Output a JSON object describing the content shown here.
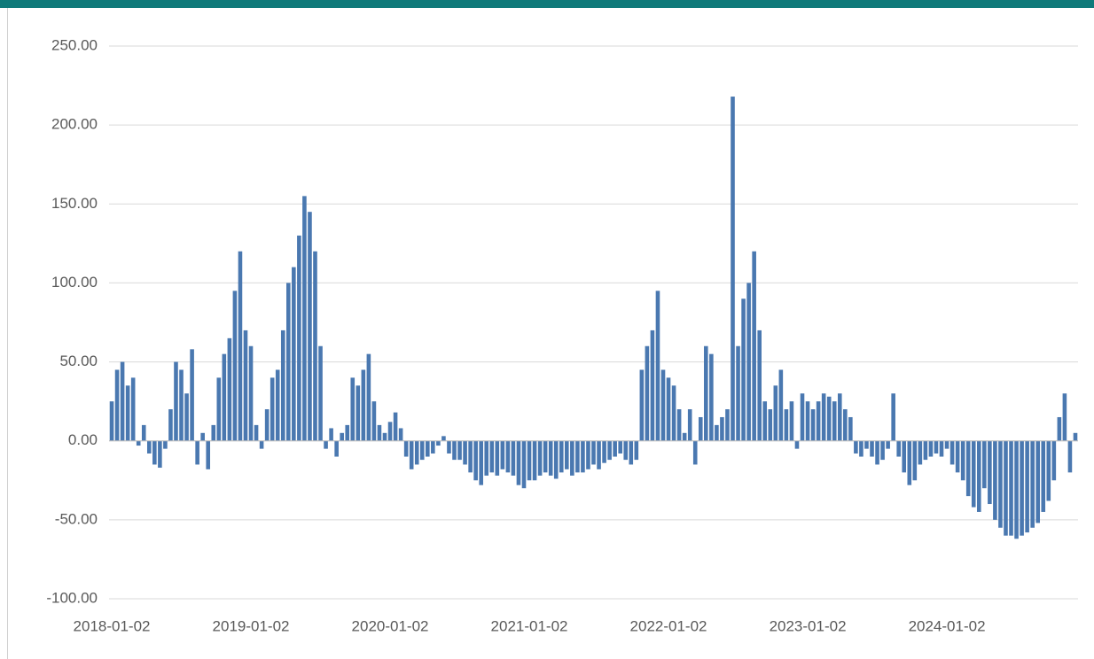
{
  "chart_data": {
    "type": "bar",
    "categories": [
      "2018-01-02",
      null,
      null,
      null,
      null,
      null,
      null,
      null,
      null,
      null,
      null,
      null,
      null,
      null,
      null,
      null,
      null,
      null,
      null,
      null,
      null,
      null,
      null,
      null,
      null,
      null,
      "2019-01-02",
      null,
      null,
      null,
      null,
      null,
      null,
      null,
      null,
      null,
      null,
      null,
      null,
      null,
      null,
      null,
      null,
      null,
      null,
      null,
      null,
      null,
      null,
      null,
      null,
      null,
      "2020-01-02",
      null,
      null,
      null,
      null,
      null,
      null,
      null,
      null,
      null,
      null,
      null,
      null,
      null,
      null,
      null,
      null,
      null,
      null,
      null,
      null,
      null,
      null,
      null,
      null,
      null,
      "2021-01-02",
      null,
      null,
      null,
      null,
      null,
      null,
      null,
      null,
      null,
      null,
      null,
      null,
      null,
      null,
      null,
      null,
      null,
      null,
      null,
      null,
      null,
      null,
      null,
      null,
      null,
      "2022-01-02",
      null,
      null,
      null,
      null,
      null,
      null,
      null,
      null,
      null,
      null,
      null,
      null,
      null,
      null,
      null,
      null,
      null,
      null,
      null,
      null,
      null,
      null,
      null,
      null,
      null,
      "2023-01-02",
      null,
      null,
      null,
      null,
      null,
      null,
      null,
      null,
      null,
      null,
      null,
      null,
      null,
      null,
      null,
      null,
      null,
      null,
      null,
      null,
      null,
      null,
      null,
      null,
      null,
      "2024-01-02",
      null,
      null,
      null,
      null,
      null,
      null,
      null,
      null,
      null,
      null,
      null,
      null,
      null,
      null,
      null,
      null,
      null,
      null,
      null,
      null,
      null,
      null,
      null,
      null
    ],
    "values": [
      25,
      45,
      50,
      35,
      40,
      -3,
      10,
      -8,
      -15,
      -17,
      -5,
      20,
      50,
      45,
      30,
      58,
      -15,
      5,
      -18,
      10,
      40,
      55,
      65,
      95,
      120,
      70,
      60,
      10,
      -5,
      20,
      40,
      45,
      70,
      100,
      110,
      130,
      155,
      145,
      120,
      60,
      -5,
      8,
      -10,
      5,
      10,
      40,
      35,
      45,
      55,
      25,
      10,
      5,
      12,
      18,
      8,
      -10,
      -18,
      -15,
      -12,
      -10,
      -8,
      -3,
      3,
      -8,
      -12,
      -12,
      -15,
      -20,
      -25,
      -28,
      -22,
      -20,
      -22,
      -18,
      -20,
      -22,
      -28,
      -30,
      -25,
      -25,
      -22,
      -20,
      -22,
      -24,
      -20,
      -18,
      -22,
      -20,
      -20,
      -18,
      -15,
      -18,
      -14,
      -12,
      -10,
      -8,
      -12,
      -15,
      -12,
      45,
      60,
      70,
      95,
      45,
      40,
      35,
      20,
      5,
      20,
      -15,
      15,
      60,
      55,
      10,
      15,
      20,
      218,
      60,
      90,
      100,
      120,
      70,
      25,
      20,
      35,
      45,
      20,
      25,
      -5,
      30,
      25,
      20,
      25,
      30,
      28,
      25,
      30,
      20,
      15,
      -8,
      -10,
      -5,
      -10,
      -15,
      -12,
      -5,
      30,
      -10,
      -20,
      -28,
      -25,
      -15,
      -12,
      -10,
      -8,
      -10,
      -5,
      -15,
      -20,
      -25,
      -35,
      -42,
      -45,
      -30,
      -40,
      -50,
      -55,
      -60,
      -60,
      -62,
      -60,
      -58,
      -55,
      -52,
      -45,
      -38,
      -25,
      15,
      30,
      -20,
      5
    ],
    "color": "#4a78b0",
    "ylim": [
      -100,
      250
    ],
    "yticks": [
      {
        "value": -100,
        "label": "-100.00"
      },
      {
        "value": -50,
        "label": "-50.00"
      },
      {
        "value": 0,
        "label": "0.00"
      },
      {
        "value": 50,
        "label": "50.00"
      },
      {
        "value": 100,
        "label": "100.00"
      },
      {
        "value": 150,
        "label": "150.00"
      },
      {
        "value": 200,
        "label": "200.00"
      },
      {
        "value": 250,
        "label": "250.00"
      }
    ],
    "grid": true
  }
}
